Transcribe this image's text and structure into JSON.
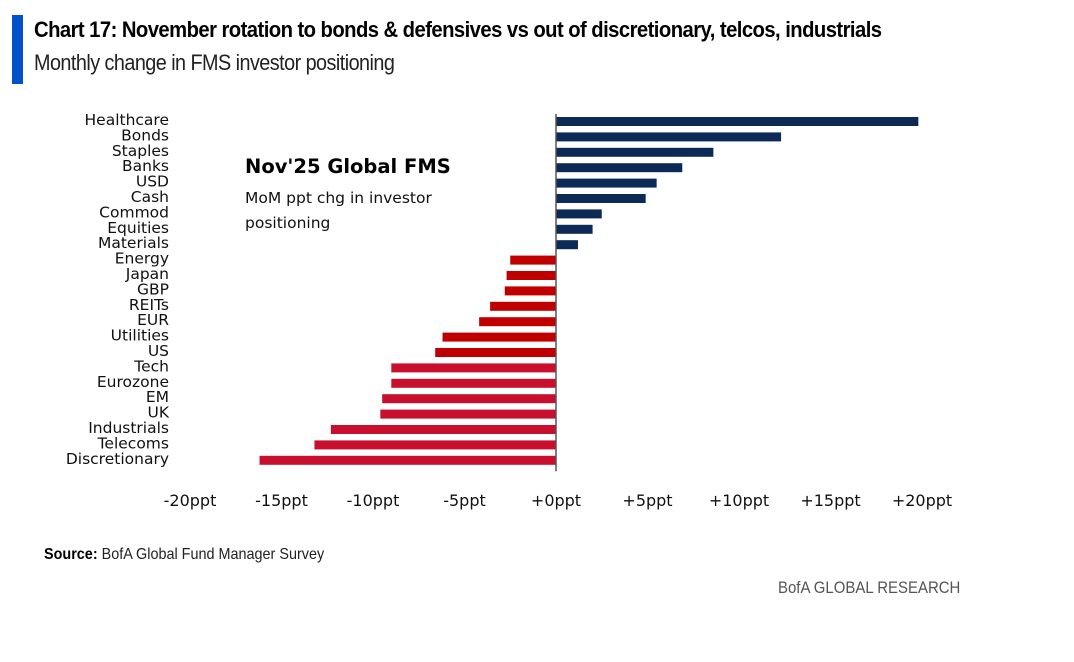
{
  "header": {
    "title": "Chart 17: November rotation to bonds & defensives vs out of discretionary, telcos, industrials",
    "subtitle": "Monthly change in FMS investor positioning"
  },
  "annotation": {
    "title": "Nov'25 Global FMS",
    "subtitle": "MoM ppt chg in investor positioning"
  },
  "footer": {
    "source_label": "Source:",
    "source_text": "BofA Global Fund Manager Survey",
    "brand": "BofA GLOBAL RESEARCH"
  },
  "colors": {
    "accent": "#0052cc",
    "positive": "#0c2a55",
    "negative_dark": "#c00000",
    "negative_light": "#c8102e",
    "axis": "#555555"
  },
  "chart_data": {
    "type": "bar",
    "orientation": "horizontal",
    "title": "Chart 17: November rotation to bonds & defensives vs out of discretionary, telcos, industrials",
    "subtitle": "Monthly change in FMS investor positioning",
    "xlabel": "",
    "ylabel": "",
    "xlim": [
      -20,
      20
    ],
    "x_ticks": [
      -20,
      -15,
      -10,
      -5,
      0,
      5,
      10,
      15,
      20
    ],
    "x_tick_labels": [
      "-20ppt",
      "-15ppt",
      "-10ppt",
      "-5ppt",
      "+0ppt",
      "+5ppt",
      "+10ppt",
      "+15ppt",
      "+20ppt"
    ],
    "grid": false,
    "legend": "none",
    "unit": "ppt",
    "categories": [
      "Healthcare",
      "Bonds",
      "Staples",
      "Banks",
      "USD",
      "Cash",
      "Commod",
      "Equities",
      "Materials",
      "Energy",
      "Japan",
      "GBP",
      "REITs",
      "EUR",
      "Utilities",
      "US",
      "Tech",
      "Eurozone",
      "EM",
      "UK",
      "Industrials",
      "Telecoms",
      "Discretionary"
    ],
    "values": [
      19.8,
      12.3,
      8.6,
      6.9,
      5.5,
      4.9,
      2.5,
      2.0,
      1.2,
      -2.5,
      -2.7,
      -2.8,
      -3.6,
      -4.2,
      -6.2,
      -6.6,
      -9.0,
      -9.0,
      -9.5,
      -9.6,
      -12.3,
      -13.2,
      -16.2
    ],
    "bar_color_groups": [
      "positive",
      "positive",
      "positive",
      "positive",
      "positive",
      "positive",
      "positive",
      "positive",
      "positive",
      "negative_dark",
      "negative_dark",
      "negative_dark",
      "negative_dark",
      "negative_dark",
      "negative_dark",
      "negative_dark",
      "negative_light",
      "negative_light",
      "negative_light",
      "negative_light",
      "negative_light",
      "negative_light",
      "negative_light"
    ]
  }
}
